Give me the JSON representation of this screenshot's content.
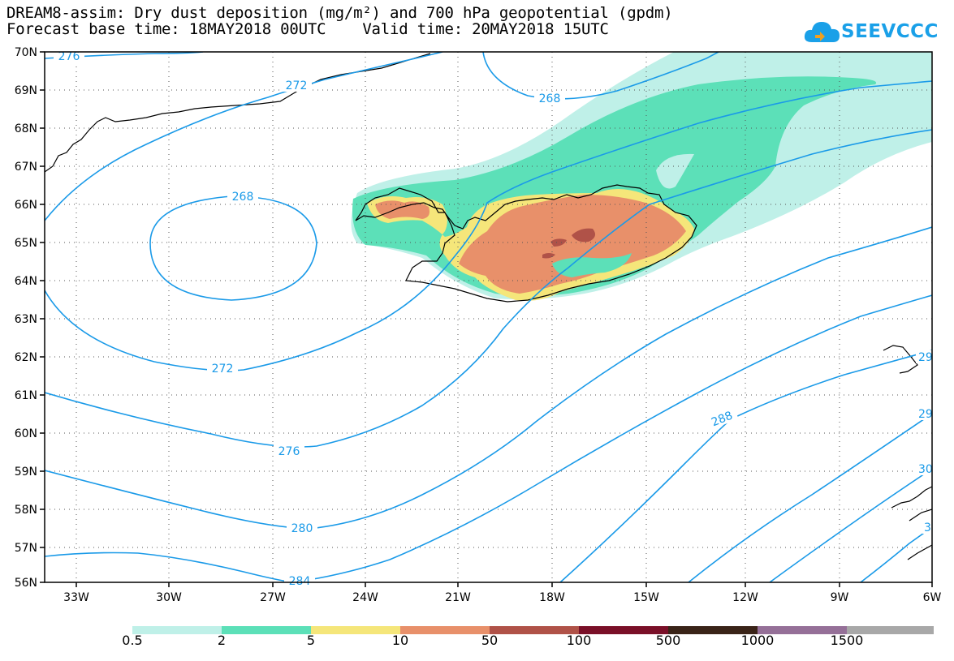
{
  "title": {
    "line1": "DREAM8-assim: Dry dust deposition (mg/m²) and 700 hPa geopotential (gpdm)",
    "line2": "Forecast base time: 18MAY2018 00UTC    Valid time: 20MAY2018 15UTC"
  },
  "logo": {
    "text": "SEEVCCC",
    "icon": "cloud-icon",
    "color": "#1aa0e8"
  },
  "map": {
    "lat_labels": [
      "70N",
      "69N",
      "68N",
      "67N",
      "66N",
      "65N",
      "64N",
      "63N",
      "62N",
      "61N",
      "60N",
      "59N",
      "58N",
      "57N",
      "56N"
    ],
    "lon_labels": [
      "33W",
      "30W",
      "27W",
      "24W",
      "21W",
      "18W",
      "15W",
      "12W",
      "9W",
      "6W"
    ],
    "contour_labels": [
      "276",
      "272",
      "268",
      "268",
      "272",
      "276",
      "280",
      "284",
      "288",
      "29",
      "29",
      "30",
      "3"
    ]
  },
  "legend": {
    "labels": [
      "0.5",
      "2",
      "5",
      "10",
      "50",
      "100",
      "500",
      "1000",
      "1500"
    ],
    "colors": [
      "#bff0e8",
      "#5ce0b8",
      "#f5e67a",
      "#e8906a",
      "#b05248",
      "#7a1028",
      "#3a2418",
      "#957098",
      "#a8a8a8"
    ]
  }
}
